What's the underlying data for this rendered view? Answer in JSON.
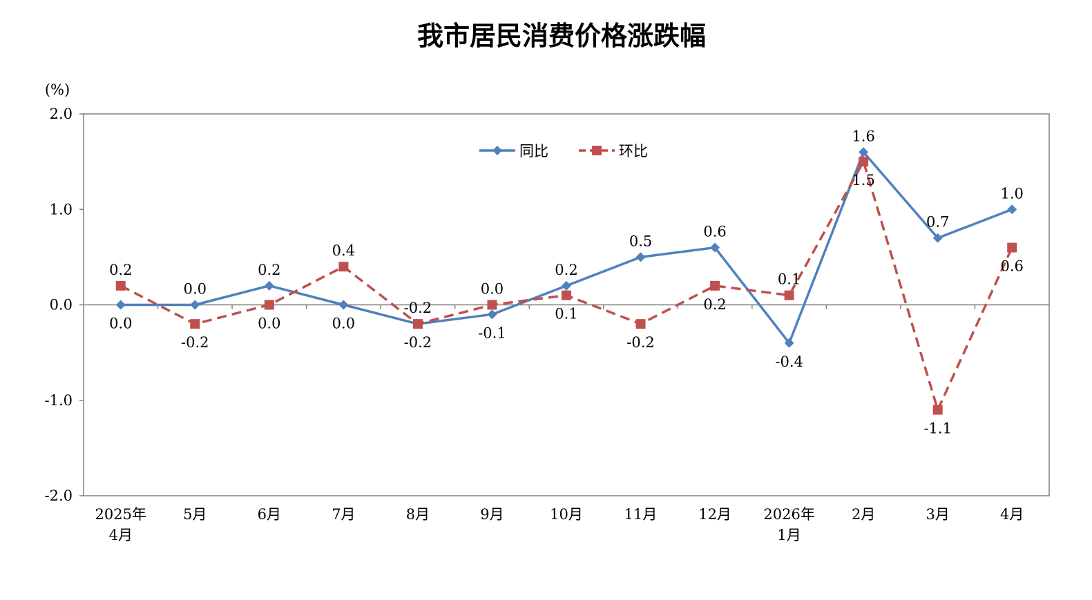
{
  "colors": {
    "yoy": "#4f81bd",
    "mom": "#c0504d",
    "axis": "#808080",
    "frame": "#808080"
  },
  "chart_data": {
    "type": "line",
    "title": "我市居民消费价格涨跌幅",
    "unit": "(%)",
    "ylim": [
      -2.0,
      2.0
    ],
    "yticks": [
      2.0,
      1.0,
      0.0,
      -1.0,
      -2.0
    ],
    "ytick_labels": [
      "2.0",
      "1.0",
      "0.0",
      "-1.0",
      "-2.0"
    ],
    "grid": false,
    "legend_position": "top-center",
    "categories": [
      [
        "2025年",
        "4月"
      ],
      [
        "5月"
      ],
      [
        "6月"
      ],
      [
        "7月"
      ],
      [
        "8月"
      ],
      [
        "9月"
      ],
      [
        "10月"
      ],
      [
        "11月"
      ],
      [
        "12月"
      ],
      [
        "2026年",
        "1月"
      ],
      [
        "2月"
      ],
      [
        "3月"
      ],
      [
        "4月"
      ]
    ],
    "series": [
      {
        "name": "同比",
        "marker": "diamond",
        "dash": false,
        "values": [
          0.0,
          0.0,
          0.2,
          0.0,
          -0.2,
          -0.1,
          0.2,
          0.5,
          0.6,
          -0.4,
          1.6,
          0.7,
          1.0
        ],
        "labels": [
          "0.0",
          "0.0",
          "0.2",
          "0.0",
          "-0.2",
          "-0.1",
          "0.2",
          "0.5",
          "0.6",
          "-0.4",
          "1.6",
          "0.7",
          "1.0"
        ],
        "label_pos": [
          "below",
          "above",
          "above",
          "below",
          "below",
          "below",
          "above",
          "above",
          "above",
          "below",
          "above",
          "above",
          "above"
        ]
      },
      {
        "name": "环比",
        "marker": "square",
        "dash": true,
        "values": [
          0.2,
          -0.2,
          0.0,
          0.4,
          -0.2,
          0.0,
          0.1,
          -0.2,
          0.2,
          0.1,
          1.5,
          -1.1,
          0.6
        ],
        "labels": [
          "0.2",
          "-0.2",
          "0.0",
          "0.4",
          "-0.2",
          "0.0",
          "0.1",
          "-0.2",
          "0.2",
          "0.1",
          "1.5",
          "-1.1",
          "0.6"
        ],
        "label_pos": [
          "above",
          "below",
          "below",
          "above",
          "above",
          "above",
          "below",
          "below",
          "below",
          "above",
          "below",
          "below",
          "below"
        ]
      }
    ]
  }
}
